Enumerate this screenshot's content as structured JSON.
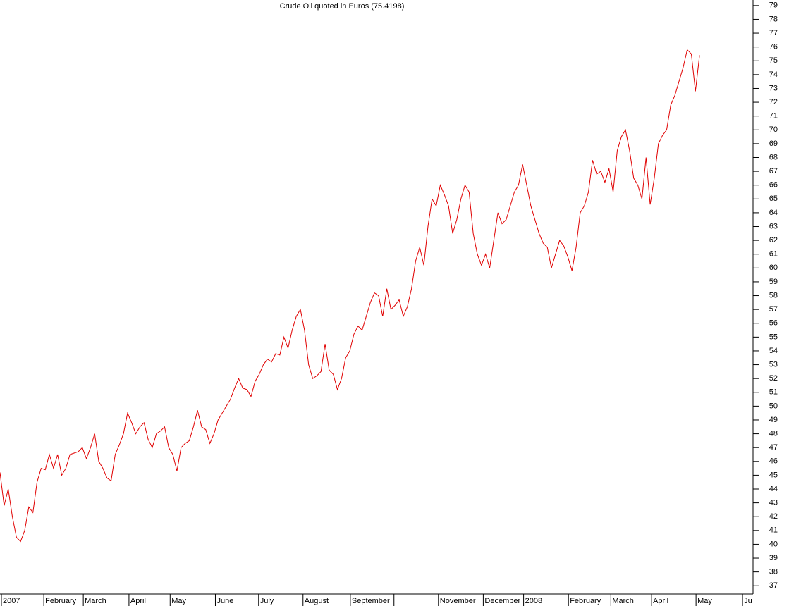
{
  "chart_data": {
    "type": "line",
    "title": "Crude Oil quoted in Euros (75.4198)",
    "series": [
      {
        "color": "#e00000",
        "values": [
          45.2,
          42.8,
          44,
          42,
          40.5,
          40.2,
          41,
          42.7,
          42.3,
          44.5,
          45.5,
          45.4,
          46.5,
          45.5,
          46.5,
          45,
          45.5,
          46.5,
          46.6,
          46.7,
          47,
          46.2,
          47,
          48,
          46,
          45.5,
          44.8,
          44.6,
          46.5,
          47.2,
          48,
          49.5,
          48.8,
          48,
          48.5,
          48.8,
          47.6,
          47,
          48,
          48.2,
          48.5,
          47,
          46.5,
          45.3,
          47,
          47.3,
          47.5,
          48.5,
          49.7,
          48.5,
          48.3,
          47.3,
          48,
          49,
          49.5,
          50,
          50.5,
          51.3,
          52,
          51.3,
          51.2,
          50.7,
          51.8,
          52.3,
          53,
          53.4,
          53.2,
          53.8,
          53.7,
          55,
          54.2,
          55.5,
          56.5,
          57,
          55.5,
          53,
          52,
          52.2,
          52.5,
          54.5,
          52.6,
          52.3,
          51.2,
          52,
          53.5,
          54,
          55.2,
          55.8,
          55.5,
          56.5,
          57.5,
          58.2,
          58,
          56.5,
          58.5,
          57,
          57.3,
          57.7,
          56.5,
          57.2,
          58.5,
          60.5,
          61.5,
          60.2,
          63,
          65,
          64.5,
          66,
          65.3,
          64.5,
          62.5,
          63.5,
          65,
          66,
          65.5,
          62.5,
          61,
          60.2,
          61,
          60,
          62,
          64,
          63.2,
          63.5,
          64.5,
          65.5,
          66,
          67.5,
          66,
          64.5,
          63.5,
          62.5,
          61.8,
          61.5,
          60,
          61,
          62,
          61.6,
          60.8,
          59.8,
          61.5,
          64,
          64.5,
          65.5,
          67.8,
          66.8,
          67,
          66.2,
          67.2,
          65.5,
          68.5,
          69.5,
          70,
          68.5,
          66.5,
          66,
          65,
          68,
          64.6,
          66.5,
          69,
          69.6,
          70,
          71.8,
          72.5,
          73.5,
          74.5,
          75.8,
          75.5,
          72.8,
          75.4
        ]
      }
    ],
    "xlim": [
      0,
      183
    ],
    "xticks": [
      {
        "value": 0,
        "label": "2007"
      },
      {
        "value": 10.3,
        "label": "February"
      },
      {
        "value": 19.9,
        "label": "March"
      },
      {
        "value": 31,
        "label": "April"
      },
      {
        "value": 41,
        "label": "May"
      },
      {
        "value": 52,
        "label": "June"
      },
      {
        "value": 62.5,
        "label": "July"
      },
      {
        "value": 73.3,
        "label": "August"
      },
      {
        "value": 84.8,
        "label": "September"
      },
      {
        "value": 95.4,
        "label": null
      },
      {
        "value": 106.2,
        "label": "November"
      },
      {
        "value": 117.1,
        "label": "December"
      },
      {
        "value": 126.9,
        "label": "2008"
      },
      {
        "value": 137.8,
        "label": "February"
      },
      {
        "value": 148.1,
        "label": "March"
      },
      {
        "value": 158,
        "label": "April"
      },
      {
        "value": 168.8,
        "label": "May"
      },
      {
        "value": 180.1,
        "label": "Ju"
      }
    ],
    "ylim": [
      36.4,
      79.4
    ],
    "yticks": [
      37,
      38,
      39,
      40,
      41,
      42,
      43,
      44,
      45,
      46,
      47,
      48,
      49,
      50,
      51,
      52,
      53,
      54,
      55,
      56,
      57,
      58,
      59,
      60,
      61,
      62,
      63,
      64,
      65,
      66,
      67,
      68,
      69,
      70,
      71,
      72,
      73,
      74,
      75,
      76,
      77,
      78,
      79
    ]
  }
}
